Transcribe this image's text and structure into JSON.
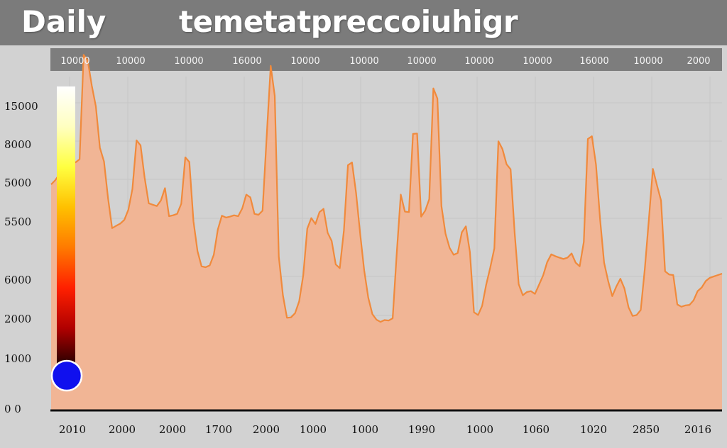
{
  "header": {
    "left_title": "Daily",
    "title": "temetatpreccoiuhigr"
  },
  "colors": {
    "line": "#f08a3c",
    "fill": "#f1b595",
    "marker": "#1010ee",
    "band": "#7d7d7d",
    "background": "#d2d2d2"
  },
  "chart_data": {
    "type": "area",
    "title": "temetatpreccoiuhigr",
    "xlabel": "",
    "ylabel": "",
    "top_tick_labels": [
      "10000",
      "10000",
      "10000",
      "16000",
      "10000",
      "10000",
      "10000",
      "10000",
      "10000",
      "16000",
      "10000",
      "2000"
    ],
    "x_tick_labels": [
      "2010",
      "2000",
      "2000",
      "1700",
      "2000",
      "1000",
      "1000",
      "1990",
      "1000",
      "1060",
      "1020",
      "2850",
      "2016"
    ],
    "y_tick_labels": [
      "15000",
      "8000",
      "5000",
      "5500",
      "6000",
      "2000",
      "1000",
      "0 0"
    ],
    "grid": true,
    "legend": "colorbar-left",
    "colorbar_stops": [
      "#1a0000",
      "#b00000",
      "#ff2000",
      "#ff7a00",
      "#ffc000",
      "#ffff40",
      "#ffffc0",
      "#ffffff"
    ],
    "values": [
      4900,
      4990,
      5120,
      5300,
      5390,
      5410,
      5380,
      5450,
      7720,
      7600,
      7050,
      6600,
      5700,
      5400,
      4600,
      3950,
      4000,
      4050,
      4130,
      4350,
      4800,
      5860,
      5750,
      5050,
      4490,
      4460,
      4430,
      4550,
      4820,
      4210,
      4230,
      4260,
      4480,
      5490,
      5390,
      4100,
      3450,
      3120,
      3100,
      3140,
      3370,
      3920,
      4220,
      4180,
      4200,
      4230,
      4210,
      4380,
      4680,
      4620,
      4260,
      4240,
      4330,
      5910,
      7480,
      6830,
      3330,
      2490,
      2000,
      2010,
      2100,
      2360,
      2920,
      3940,
      4170,
      4040,
      4300,
      4370,
      3850,
      3670,
      3160,
      3080,
      3900,
      5320,
      5380,
      4720,
      3830,
      3030,
      2440,
      2080,
      1960,
      1910,
      1950,
      1940,
      1990,
      3400,
      4680,
      4310,
      4300,
      6000,
      6010,
      4200,
      4330,
      4580,
      6990,
      6770,
      4430,
      3830,
      3520,
      3370,
      3410,
      3860,
      3990,
      3430,
      2120,
      2060,
      2260,
      2720,
      3090,
      3510,
      5840,
      5670,
      5340,
      5230,
      3850,
      2730,
      2490,
      2560,
      2580,
      2520,
      2720,
      2920,
      3210,
      3380,
      3340,
      3310,
      3280,
      3310,
      3400,
      3200,
      3120,
      3650,
      5890,
      5950,
      5330,
      4150,
      3200,
      2800,
      2470,
      2680,
      2850,
      2640,
      2230,
      2040,
      2060,
      2170,
      3060,
      4130,
      5240,
      4880,
      4550,
      3010,
      2940,
      2930,
      2290,
      2240,
      2270,
      2280,
      2380,
      2580,
      2660,
      2800,
      2870,
      2900,
      2930,
      2960
    ],
    "marker": {
      "x_index": 0,
      "value": 1000
    }
  }
}
